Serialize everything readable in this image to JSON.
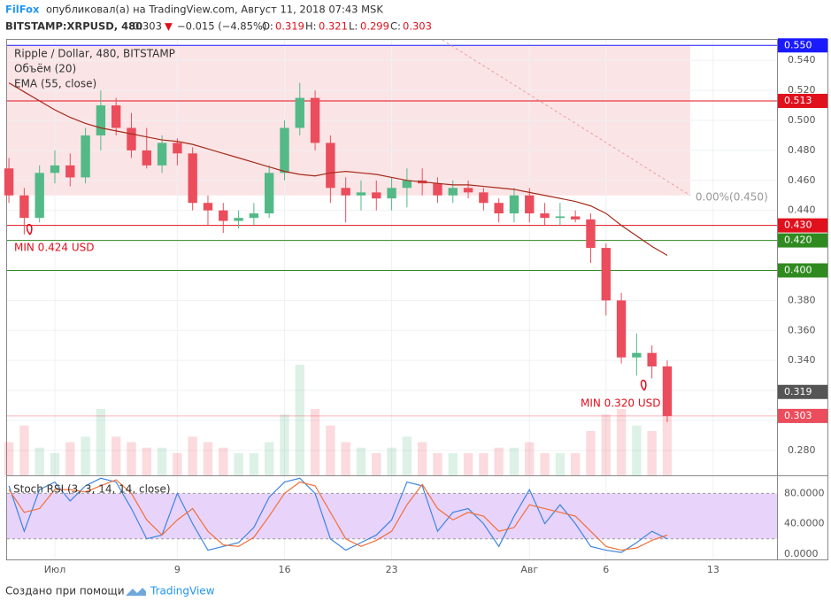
{
  "header": {
    "author": "FilFox",
    "published": "опубликовал(а) на TradingView.com, Август 11, 2018 07:43 MSK",
    "symbol": "BITSTAMP:XRPUSD, 480",
    "last": "0.303",
    "arrow": "▼",
    "change": "−0.015 (−4.85%)",
    "o_label": "O:",
    "o": "0.319",
    "h_label": "H:",
    "h": "0.321",
    "l_label": "L:",
    "l": "0.299",
    "c_label": "C:",
    "c": "0.303"
  },
  "footer": {
    "text": "Создано при помощи",
    "brand": "TradingView"
  },
  "chart_data": {
    "type": "candlestick",
    "title": "Ripple / Dollar, 480, BITSTAMP",
    "indicators": [
      "Объём (20)",
      "EMA (55, close)"
    ],
    "up_color": "#53b987",
    "down_color": "#eb4d5c",
    "x": [
      -2,
      -1,
      0,
      1,
      2,
      3,
      4,
      5,
      6,
      7,
      8,
      9,
      10,
      11,
      12,
      13,
      14,
      15,
      16,
      17,
      18,
      19,
      20,
      21,
      22,
      23,
      24,
      25,
      26,
      27,
      28,
      29,
      30,
      31,
      32,
      33,
      34,
      35,
      36,
      37,
      38,
      39,
      40,
      41
    ],
    "ohlc": [
      [
        0.468,
        0.475,
        0.445,
        0.45
      ],
      [
        0.45,
        0.455,
        0.424,
        0.435
      ],
      [
        0.435,
        0.47,
        0.432,
        0.465
      ],
      [
        0.465,
        0.48,
        0.458,
        0.47
      ],
      [
        0.47,
        0.478,
        0.456,
        0.462
      ],
      [
        0.462,
        0.495,
        0.458,
        0.49
      ],
      [
        0.49,
        0.52,
        0.48,
        0.51
      ],
      [
        0.51,
        0.515,
        0.49,
        0.495
      ],
      [
        0.495,
        0.505,
        0.475,
        0.48
      ],
      [
        0.48,
        0.495,
        0.468,
        0.47
      ],
      [
        0.47,
        0.49,
        0.465,
        0.485
      ],
      [
        0.485,
        0.488,
        0.47,
        0.478
      ],
      [
        0.478,
        0.482,
        0.44,
        0.445
      ],
      [
        0.445,
        0.45,
        0.43,
        0.44
      ],
      [
        0.44,
        0.445,
        0.425,
        0.433
      ],
      [
        0.433,
        0.44,
        0.428,
        0.435
      ],
      [
        0.435,
        0.445,
        0.43,
        0.438
      ],
      [
        0.438,
        0.47,
        0.435,
        0.465
      ],
      [
        0.465,
        0.5,
        0.46,
        0.495
      ],
      [
        0.495,
        0.525,
        0.49,
        0.515
      ],
      [
        0.515,
        0.52,
        0.48,
        0.485
      ],
      [
        0.485,
        0.49,
        0.445,
        0.455
      ],
      [
        0.455,
        0.462,
        0.432,
        0.45
      ],
      [
        0.45,
        0.46,
        0.44,
        0.452
      ],
      [
        0.452,
        0.46,
        0.44,
        0.448
      ],
      [
        0.448,
        0.462,
        0.44,
        0.455
      ],
      [
        0.455,
        0.468,
        0.442,
        0.46
      ],
      [
        0.46,
        0.468,
        0.45,
        0.458
      ],
      [
        0.458,
        0.462,
        0.445,
        0.45
      ],
      [
        0.45,
        0.46,
        0.445,
        0.455
      ],
      [
        0.455,
        0.46,
        0.448,
        0.452
      ],
      [
        0.452,
        0.455,
        0.44,
        0.445
      ],
      [
        0.445,
        0.448,
        0.432,
        0.438
      ],
      [
        0.438,
        0.455,
        0.432,
        0.45
      ],
      [
        0.45,
        0.455,
        0.432,
        0.438
      ],
      [
        0.438,
        0.445,
        0.43,
        0.435
      ],
      [
        0.435,
        0.445,
        0.43,
        0.436
      ],
      [
        0.436,
        0.44,
        0.432,
        0.434
      ],
      [
        0.434,
        0.438,
        0.405,
        0.415
      ],
      [
        0.415,
        0.418,
        0.37,
        0.38
      ],
      [
        0.38,
        0.385,
        0.338,
        0.342
      ],
      [
        0.342,
        0.358,
        0.33,
        0.345
      ],
      [
        0.345,
        0.35,
        0.328,
        0.336
      ],
      [
        0.336,
        0.34,
        0.299,
        0.303
      ]
    ],
    "volume": [
      30,
      45,
      25,
      20,
      30,
      35,
      60,
      35,
      30,
      25,
      25,
      20,
      35,
      30,
      25,
      20,
      20,
      30,
      55,
      100,
      60,
      45,
      30,
      25,
      20,
      25,
      35,
      30,
      20,
      20,
      20,
      20,
      25,
      25,
      30,
      20,
      20,
      20,
      40,
      55,
      60,
      45,
      40,
      55
    ],
    "ema": {
      "name": "EMA (55, close)",
      "color": "#a52a1a",
      "values": [
        0.525,
        0.519,
        0.513,
        0.507,
        0.502,
        0.498,
        0.495,
        0.493,
        0.491,
        0.489,
        0.487,
        0.486,
        0.484,
        0.481,
        0.478,
        0.475,
        0.472,
        0.469,
        0.466,
        0.464,
        0.463,
        0.465,
        0.466,
        0.465,
        0.464,
        0.462,
        0.46,
        0.459,
        0.458,
        0.457,
        0.457,
        0.456,
        0.455,
        0.454,
        0.452,
        0.45,
        0.448,
        0.446,
        0.443,
        0.438,
        0.43,
        0.423,
        0.416,
        0.41
      ]
    },
    "xlim": [
      -2.12,
      48.17
    ],
    "xticks": [
      {
        "value": 1,
        "label": "Июл"
      },
      9,
      16,
      23,
      {
        "value": 32,
        "label": "Авг"
      },
      {
        "value": 37,
        "label": "6"
      },
      {
        "value": 44,
        "label": "13"
      }
    ],
    "ylim": [
      0.2634,
      0.5537
    ],
    "yticks": [
      {
        "value": 0.28,
        "label": "0.280"
      },
      {
        "value": 0.3,
        "label": "0.300"
      },
      {
        "value": 0.32,
        "label": "0.320"
      },
      {
        "value": 0.34,
        "label": "0.340"
      },
      {
        "value": 0.36,
        "label": "0.360"
      },
      {
        "value": 0.38,
        "label": "0.380"
      },
      {
        "value": 0.4,
        "label": "0.400"
      },
      {
        "value": 0.42,
        "label": "0.420"
      },
      {
        "value": 0.44,
        "label": "0.440"
      },
      {
        "value": 0.46,
        "label": "0.460"
      },
      {
        "value": 0.48,
        "label": "0.480"
      },
      {
        "value": 0.5,
        "label": "0.500"
      },
      {
        "value": 0.52,
        "label": "0.520"
      },
      {
        "value": 0.54,
        "label": "0.540"
      }
    ],
    "grid": true,
    "zone": {
      "xlim": [
        -2.12,
        42.5
      ],
      "ylim": [
        0.45,
        0.55
      ],
      "color": "#fbe4e6"
    },
    "levels": [
      {
        "value": 0.55,
        "label": "0.550",
        "color": "#1a1aff"
      },
      {
        "value": 0.513,
        "label": "0.513",
        "color": "#e0101d"
      },
      {
        "value": 0.43,
        "label": "0.430",
        "color": "#e0101d"
      },
      {
        "value": 0.42,
        "label": "0.420",
        "color": "#2f8a1f"
      },
      {
        "value": 0.4,
        "label": "0.400",
        "color": "#2f8a1f"
      },
      {
        "value": 0.319,
        "label": "0.319",
        "color": "#555555",
        "line": false
      },
      {
        "value": 0.303,
        "label": "0.303",
        "color": "#eb4d5c"
      }
    ],
    "fib_line": {
      "x": [
        26.3,
        42.5
      ],
      "y": [
        0.5537,
        0.45
      ],
      "label": "0.00%(0.450)"
    },
    "annotations": [
      "MIN 0.424 USD",
      "MIN 0.320 USD"
    ],
    "stoch": {
      "title": "Stoch RSI (3, 3, 14, 14, close)",
      "ylim": [
        -7.2,
        102.7
      ],
      "yticks": [
        {
          "value": 80,
          "label": "80.0000"
        },
        {
          "value": 40,
          "label": "40.0000"
        },
        {
          "value": 0,
          "label": "0.0000"
        }
      ],
      "band": [
        20,
        80
      ],
      "series": [
        {
          "name": "K",
          "color": "#3d85e0",
          "values": [
            90,
            30,
            85,
            95,
            70,
            90,
            100,
            95,
            60,
            20,
            25,
            80,
            40,
            5,
            10,
            15,
            35,
            75,
            95,
            100,
            80,
            20,
            5,
            15,
            25,
            45,
            95,
            90,
            30,
            55,
            60,
            40,
            10,
            50,
            85,
            40,
            65,
            40,
            10,
            5,
            2,
            15,
            30,
            20
          ]
        },
        {
          "name": "D",
          "color": "#f0703a",
          "values": [
            85,
            55,
            60,
            85,
            85,
            82,
            90,
            98,
            80,
            45,
            25,
            45,
            60,
            30,
            12,
            10,
            22,
            50,
            80,
            95,
            90,
            55,
            20,
            10,
            18,
            30,
            65,
            92,
            60,
            45,
            55,
            50,
            30,
            35,
            65,
            60,
            55,
            50,
            30,
            10,
            5,
            8,
            18,
            25
          ]
        }
      ]
    }
  }
}
